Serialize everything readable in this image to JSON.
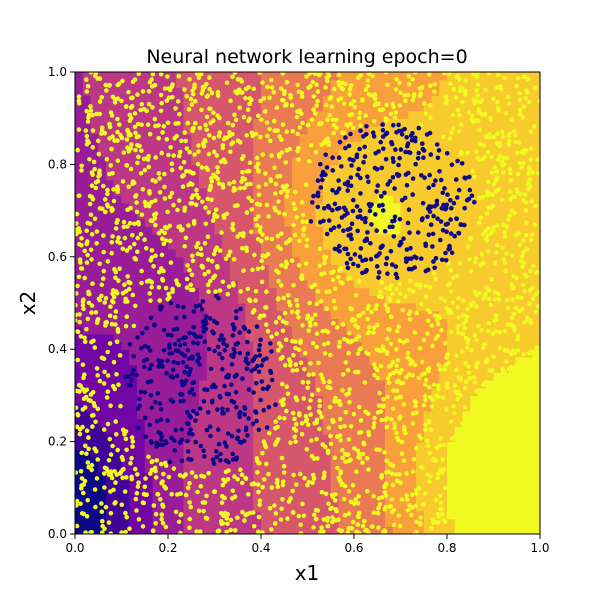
{
  "chart_data": {
    "type": "scatter",
    "title": "Neural network learning epoch=0",
    "xlabel": "x1",
    "ylabel": "x2",
    "xlim": [
      0.0,
      1.0
    ],
    "ylim": [
      0.0,
      1.0
    ],
    "xticks": [
      "0.0",
      "0.2",
      "0.4",
      "0.6",
      "0.8",
      "1.0"
    ],
    "yticks": [
      "0.0",
      "0.2",
      "0.4",
      "0.6",
      "0.8",
      "1.0"
    ],
    "grid": false,
    "legend": "none",
    "background": "decision-surface contour, plasma colormap, low values bottom-left to high values bottom-right",
    "colormap": [
      "#0d0887",
      "#6a00a8",
      "#b12a90",
      "#e16462",
      "#fca636",
      "#f0f921"
    ],
    "series": [
      {
        "class": 1,
        "color": "#f0f921",
        "marker": "circle",
        "region": "uniform scatter over the unit square, excluding the two blob regions"
      },
      {
        "class": 0,
        "color": "#0d0887",
        "marker": "circle",
        "clusters": [
          {
            "center": [
              0.27,
              0.33
            ],
            "radius_x": 0.17,
            "radius_y": 0.19
          },
          {
            "center": [
              0.68,
              0.72
            ],
            "radius_x": 0.18,
            "radius_y": 0.17
          }
        ]
      }
    ]
  }
}
